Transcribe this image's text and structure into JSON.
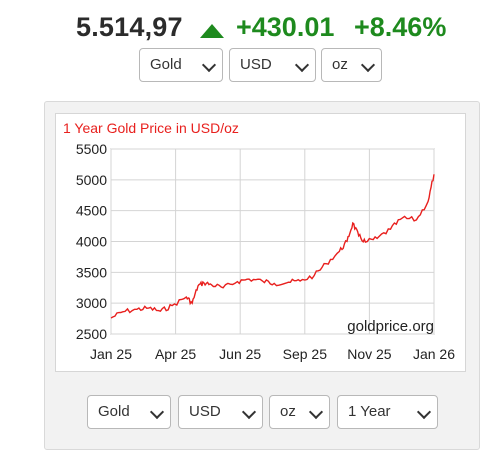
{
  "ticker": {
    "price": "5.514,97",
    "change": "+430.01",
    "percent": "+8.46%",
    "trend_icon": "up-arrow-icon",
    "trend_color": "#1e8a1e"
  },
  "top_selects": {
    "metal": "Gold",
    "currency": "USD",
    "unit": "oz"
  },
  "bottom_selects": {
    "metal": "Gold",
    "currency": "USD",
    "unit": "oz",
    "period": "1 Year"
  },
  "chart_data": {
    "type": "line",
    "title": "1 Year Gold Price in USD/oz",
    "watermark": "goldprice.org",
    "xlabel": "",
    "ylabel": "",
    "x_ticks": [
      "Jan 25",
      "Apr 25",
      "Jun 25",
      "Sep 25",
      "Nov 25",
      "Jan 26"
    ],
    "y_ticks": [
      "2500",
      "3000",
      "3500",
      "4000",
      "4500",
      "5000",
      "5500"
    ],
    "ylim": [
      2500,
      5500
    ],
    "grid": true,
    "line_color": "#e8201e",
    "x": [
      "2025-01-01",
      "2025-01-15",
      "2025-02-01",
      "2025-02-15",
      "2025-03-01",
      "2025-03-15",
      "2025-04-01",
      "2025-04-08",
      "2025-04-15",
      "2025-04-22",
      "2025-05-01",
      "2025-05-15",
      "2025-06-01",
      "2025-06-15",
      "2025-07-01",
      "2025-07-15",
      "2025-08-01",
      "2025-08-15",
      "2025-09-01",
      "2025-09-15",
      "2025-10-01",
      "2025-10-10",
      "2025-10-17",
      "2025-10-24",
      "2025-11-01",
      "2025-11-15",
      "2025-12-01",
      "2025-12-15",
      "2026-01-01",
      "2026-01-15",
      "2026-01-22"
    ],
    "values": [
      2760,
      2860,
      2900,
      2920,
      2870,
      2960,
      3100,
      3000,
      3280,
      3330,
      3300,
      3250,
      3350,
      3390,
      3360,
      3320,
      3340,
      3360,
      3450,
      3640,
      3840,
      4000,
      4300,
      4090,
      3990,
      4050,
      4200,
      4380,
      4350,
      4650,
      5090
    ]
  }
}
